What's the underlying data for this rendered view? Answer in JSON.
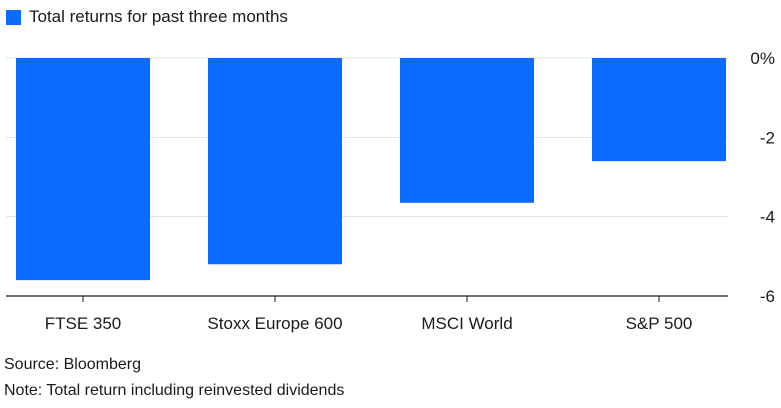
{
  "chart_data": {
    "type": "bar",
    "categories": [
      "FTSE 350",
      "Stoxx Europe 600",
      "MSCI World",
      "S&P 500"
    ],
    "series": [
      {
        "name": "Total returns for past three months",
        "values": [
          -5.6,
          -5.2,
          -3.65,
          -2.6
        ],
        "color": "#0a6cff"
      }
    ],
    "ylim": [
      -6,
      0
    ],
    "yticks": [
      0,
      -2,
      -4,
      -6
    ],
    "ytick_labels": [
      "0%",
      "-2",
      "-4",
      "-6"
    ],
    "axis_side": "right",
    "grid": true,
    "legend": "top-left"
  },
  "footer": {
    "source": "Source: Bloomberg",
    "note": "Note: Total return including reinvested dividends"
  },
  "colors": {
    "bar": "#0a6cff",
    "grid": "#e2e2e2",
    "axis": "#1a1a1a",
    "text": "#1a1a1a"
  }
}
